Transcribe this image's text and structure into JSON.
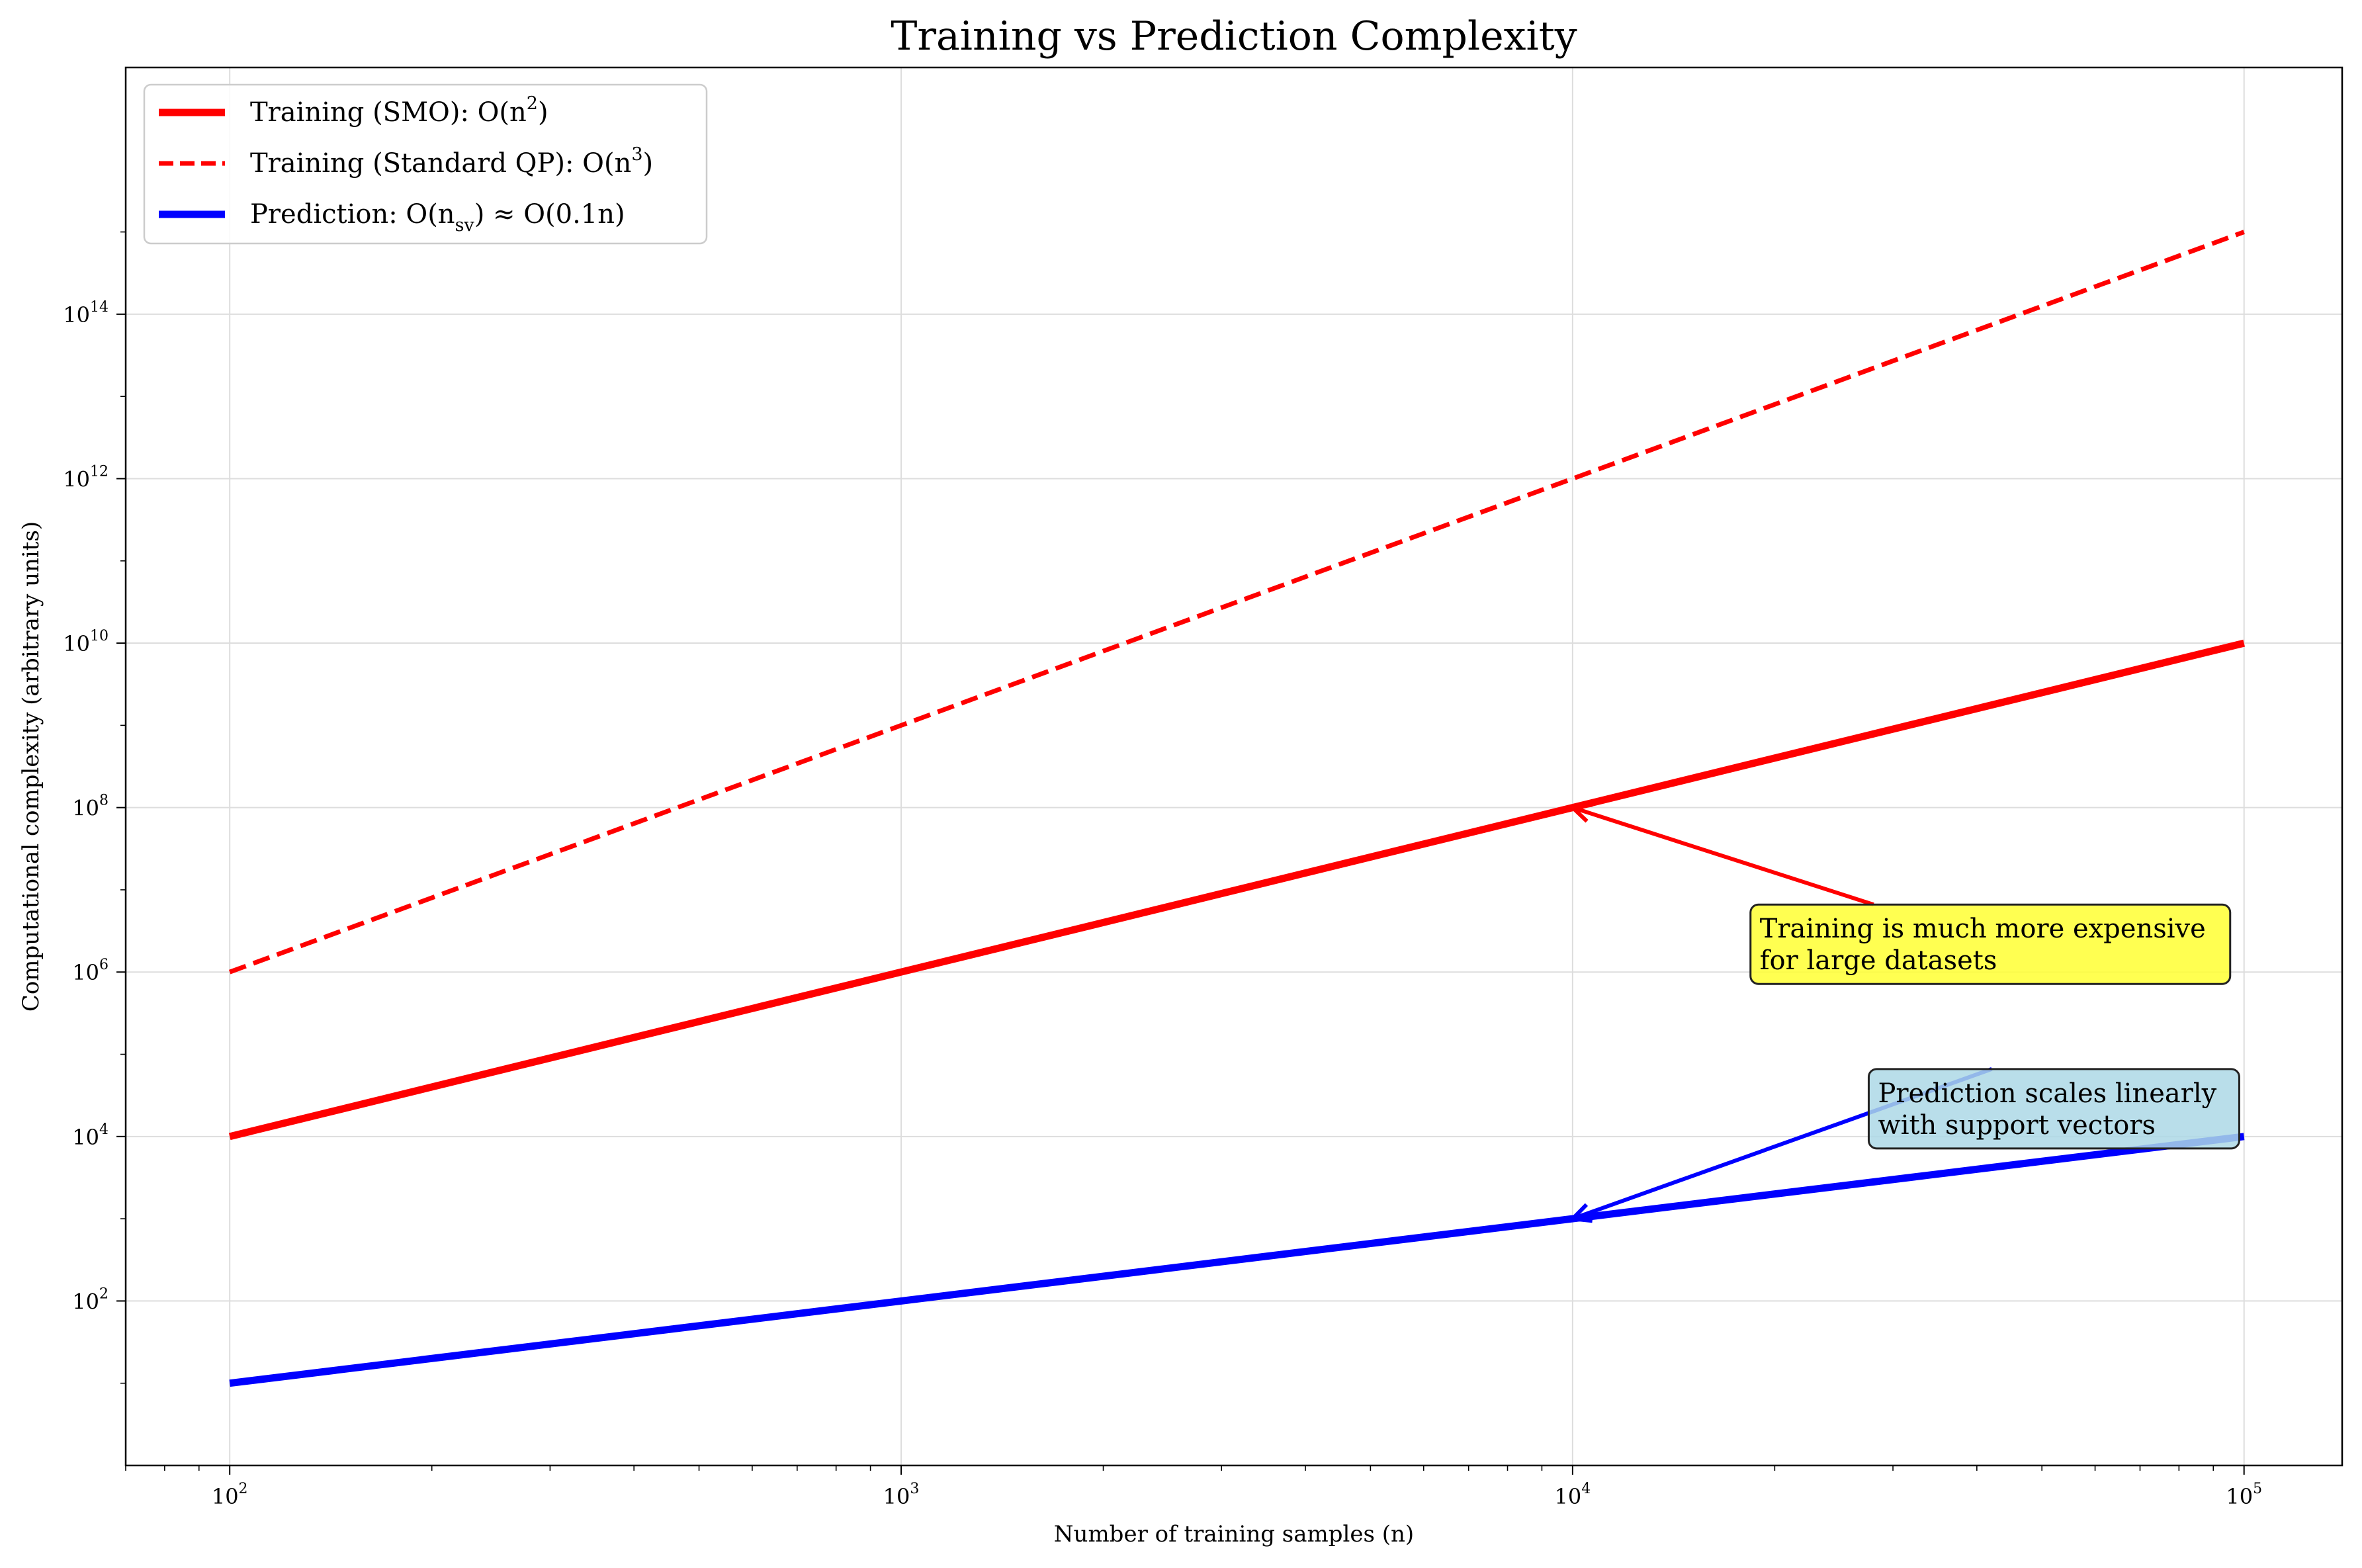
{
  "chart_data": {
    "type": "line",
    "title": "Training vs Prediction Complexity",
    "xlabel": "Number of training samples (n)",
    "ylabel": "Computational complexity (arbitrary units)",
    "xscale": "log",
    "yscale": "log",
    "xlim": [
      70,
      140000
    ],
    "ylim": [
      1,
      100000000000000000
    ],
    "grid": true,
    "legend_position": "top-left",
    "x_ticks": [
      {
        "value": 100,
        "base": "10",
        "exp": "2"
      },
      {
        "value": 1000,
        "base": "10",
        "exp": "3"
      },
      {
        "value": 10000,
        "base": "10",
        "exp": "4"
      },
      {
        "value": 100000,
        "base": "10",
        "exp": "5"
      }
    ],
    "y_ticks": [
      {
        "value": 100,
        "base": "10",
        "exp": "2"
      },
      {
        "value": 10000,
        "base": "10",
        "exp": "4"
      },
      {
        "value": 1000000,
        "base": "10",
        "exp": "6"
      },
      {
        "value": 100000000,
        "base": "10",
        "exp": "8"
      },
      {
        "value": 10000000000,
        "base": "10",
        "exp": "10"
      },
      {
        "value": 1000000000000,
        "base": "10",
        "exp": "12"
      },
      {
        "value": 100000000000000,
        "base": "10",
        "exp": "14"
      }
    ],
    "x": [
      100,
      316.23,
      1000,
      3162.28,
      10000,
      31622.78,
      100000
    ],
    "series": [
      {
        "name": "Training (SMO): O(n²)",
        "legend_parts": [
          "Training (SMO): O(n",
          "2",
          ")"
        ],
        "color": "#ff0000",
        "style": "solid",
        "values": [
          10000,
          100000,
          1000000,
          10000000,
          100000000,
          1000000000,
          10000000000
        ]
      },
      {
        "name": "Training (Standard QP): O(n³)",
        "legend_parts": [
          "Training (Standard QP): O(n",
          "3",
          ")"
        ],
        "color": "#ff0000",
        "style": "dashed",
        "values": [
          1000000,
          31622776.6,
          1000000000,
          31622776601.7,
          1000000000000,
          31622776601683.8,
          1000000000000000
        ]
      },
      {
        "name": "Prediction: O(n_sv) ≈ O(0.1n)",
        "legend_parts": [
          "Prediction: O(n",
          "sv",
          ") ≈ O(0.1n)"
        ],
        "color": "#0000ff",
        "style": "solid",
        "values": [
          10,
          31.62,
          100,
          316.23,
          1000,
          3162.28,
          10000
        ]
      }
    ],
    "annotations": [
      {
        "lines": [
          "Training is much more expensive",
          "for large datasets"
        ],
        "box_color": "#ffff33",
        "arrow_color": "#ff0000",
        "text_at": [
          19000,
          1000000
        ],
        "arrow_to": [
          10000,
          100000000
        ]
      },
      {
        "lines": [
          "Prediction scales linearly",
          "with support vectors"
        ],
        "box_color": "#add8e6",
        "arrow_color": "#0000ff",
        "text_at": [
          28500,
          10000
        ],
        "arrow_to": [
          10000,
          1000
        ]
      }
    ]
  }
}
